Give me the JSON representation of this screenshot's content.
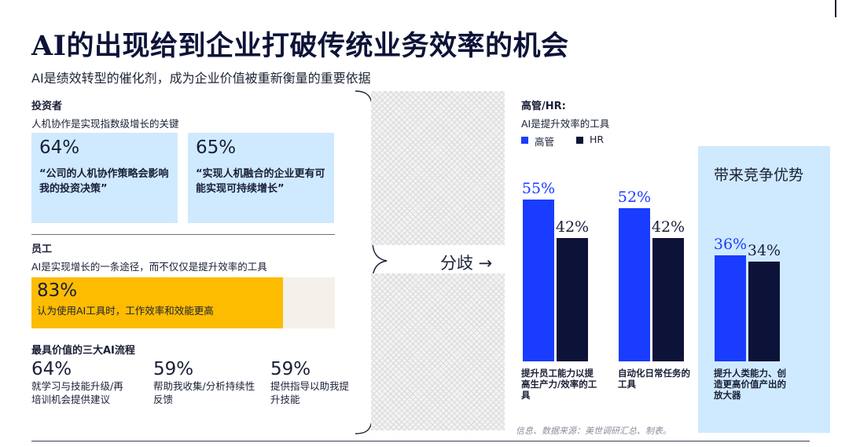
{
  "header": {
    "title": "AI的出现给到企业打破传统业务效率的机会",
    "subtitle": "AI是绩效转型的催化剂，成为企业价值被重新衡量的重要依据"
  },
  "investors": {
    "heading": "投资者",
    "sub": "人机协作是实现指数级增长的关键",
    "stats": [
      {
        "pct": "64%",
        "quote": "“公司的人机协作策略会影响我的投资决策”"
      },
      {
        "pct": "65%",
        "quote": "“实现人机融合的企业更有可能实现可持续增长”"
      }
    ]
  },
  "employees": {
    "heading": "员工",
    "sub": "AI是实现增长的一条途径，而不仅仅是提升效率的工具",
    "stat": {
      "pct": "83%",
      "text": "认为使用AI工具时，工作效率和效能更高",
      "value": 83
    }
  },
  "processes": {
    "heading": "最具价值的三大AI流程",
    "items": [
      {
        "pct": "64%",
        "text": "就学习与技能升级/再培训机会提供建议"
      },
      {
        "pct": "59%",
        "text": "帮助我收集/分析持续性反馈"
      },
      {
        "pct": "59%",
        "text": "提供指导以助我提升技能"
      }
    ]
  },
  "divider": {
    "label": "分歧 →"
  },
  "chart_data": {
    "type": "bar",
    "title": "高管/HR:",
    "subtitle": "AI是提升效率的工具",
    "categories": [
      "提升员工能力以提高生产力/效率的工具",
      "自动化日常任务的工具",
      "提升人类能力、创造更高价值产出的放大器"
    ],
    "series": [
      {
        "name": "高管",
        "values": [
          55,
          52,
          36
        ],
        "labels": [
          "55%",
          "52%",
          "36%"
        ],
        "color": "#1a3cff"
      },
      {
        "name": "HR",
        "values": [
          42,
          42,
          34
        ],
        "labels": [
          "42%",
          "42%",
          "34%"
        ],
        "color": "#0d1338"
      }
    ],
    "ylim": [
      0,
      100
    ],
    "legend_position": "top-left",
    "grid": false,
    "highlight_panel": {
      "title": "带来竞争优势",
      "category_index": 2
    }
  },
  "source": "信息、数据来源：美世调研汇总、制表。",
  "colors": {
    "accent_blue": "#1a3cff",
    "navy": "#0d1338",
    "light_blue": "#cfeaff",
    "yellow": "#fdbc00"
  }
}
